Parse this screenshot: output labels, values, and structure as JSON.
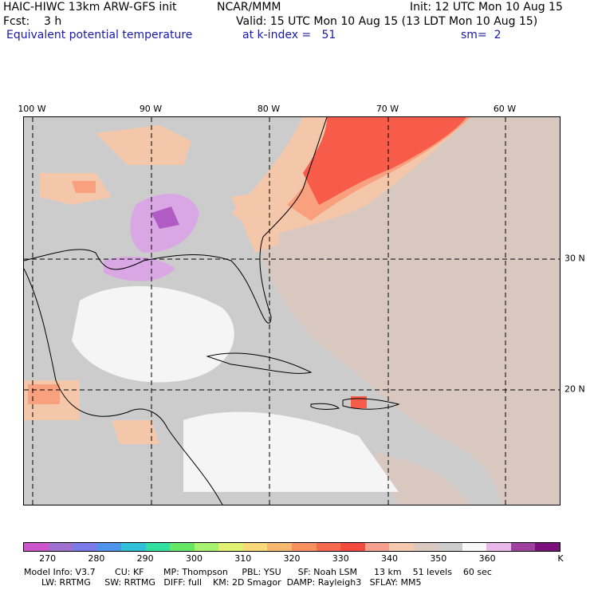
{
  "header": {
    "model_title": "HAIC-HIWC 13km ARW-GFS init",
    "center": "NCAR/MMM",
    "init": "Init: 12 UTC Mon 10 Aug 15",
    "fcst": "Fcst:    3 h",
    "valid": "Valid: 15 UTC Mon 10 Aug 15 (13 LDT Mon 10 Aug 15)",
    "field": "Equivalent potential temperature",
    "level": "at k-index =   51",
    "smooth": "sm=  2"
  },
  "map": {
    "lon_labels": [
      "100 W",
      "90 W",
      "80 W",
      "70 W",
      "60 W"
    ],
    "lat_labels": [
      "30 N",
      "20 N"
    ],
    "colors": {
      "background": "#cccccc",
      "tan": "#d9c8bf",
      "light_orange": "#f5c7aa",
      "salmon": "#f9a07e",
      "red": "#f75c4b",
      "white": "#f5f5f5",
      "lavender": "#d9a8e4",
      "purple": "#b05cc4"
    }
  },
  "colorbar": {
    "colors": [
      "#cc55cc",
      "#a070d0",
      "#7a7ae8",
      "#4f93ea",
      "#30c0d8",
      "#33e0a0",
      "#66e866",
      "#a8f070",
      "#e0f070",
      "#f8d878",
      "#f8b870",
      "#f89060",
      "#f86a50",
      "#f54a40",
      "#f8a090",
      "#f5c8b0",
      "#d8c8c0",
      "#cccccc",
      "#f8f8f8",
      "#e8b8e8",
      "#a040a0",
      "#7a107a"
    ],
    "tick_labels": [
      "270",
      "280",
      "290",
      "300",
      "310",
      "320",
      "330",
      "340",
      "350",
      "360",
      "K"
    ]
  },
  "footer": {
    "line1": "Model Info: V3.7       CU: KF       MP: Thompson     PBL: YSU      SF: Noah LSM      13 km    51 levels    60 sec",
    "line2": "LW: RRTMG     SW: RRTMG   DIFF: full    KM: 2D Smagor  DAMP: Rayleigh3   SFLAY: MM5"
  }
}
